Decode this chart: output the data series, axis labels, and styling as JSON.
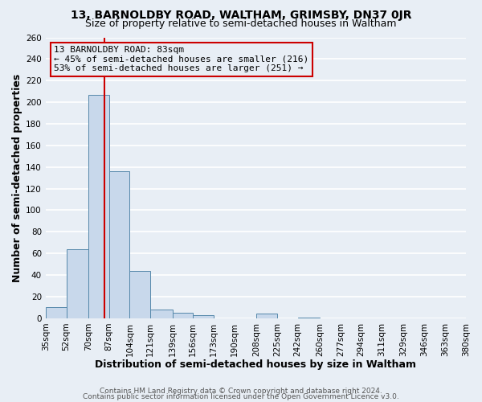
{
  "title": "13, BARNOLDBY ROAD, WALTHAM, GRIMSBY, DN37 0JR",
  "subtitle": "Size of property relative to semi-detached houses in Waltham",
  "xlabel": "Distribution of semi-detached houses by size in Waltham",
  "ylabel": "Number of semi-detached properties",
  "bin_labels": [
    "35sqm",
    "52sqm",
    "70sqm",
    "87sqm",
    "104sqm",
    "121sqm",
    "139sqm",
    "156sqm",
    "173sqm",
    "190sqm",
    "208sqm",
    "225sqm",
    "242sqm",
    "260sqm",
    "277sqm",
    "294sqm",
    "311sqm",
    "329sqm",
    "346sqm",
    "363sqm",
    "380sqm"
  ],
  "bin_edges": [
    35,
    52,
    70,
    87,
    104,
    121,
    139,
    156,
    173,
    190,
    208,
    225,
    242,
    260,
    277,
    294,
    311,
    329,
    346,
    363,
    380
  ],
  "bar_heights": [
    10,
    64,
    207,
    136,
    44,
    8,
    5,
    3,
    0,
    0,
    4,
    0,
    1,
    0,
    0,
    0,
    0,
    0,
    0,
    0
  ],
  "bar_color": "#c8d8eb",
  "bar_edgecolor": "#5588aa",
  "property_size": 83,
  "property_line_color": "#cc0000",
  "annotation_line1": "13 BARNOLDBY ROAD: 83sqm",
  "annotation_line2": "← 45% of semi-detached houses are smaller (216)",
  "annotation_line3": "53% of semi-detached houses are larger (251) →",
  "annotation_box_edgecolor": "#cc0000",
  "ylim": [
    0,
    260
  ],
  "yticks": [
    0,
    20,
    40,
    60,
    80,
    100,
    120,
    140,
    160,
    180,
    200,
    220,
    240,
    260
  ],
  "footer1": "Contains HM Land Registry data © Crown copyright and database right 2024.",
  "footer2": "Contains public sector information licensed under the Open Government Licence v3.0.",
  "background_color": "#e8eef5",
  "plot_bg_color": "#e8eef5",
  "grid_color": "#ffffff",
  "title_fontsize": 10,
  "subtitle_fontsize": 9,
  "axis_label_fontsize": 9,
  "tick_fontsize": 7.5,
  "footer_fontsize": 6.5
}
